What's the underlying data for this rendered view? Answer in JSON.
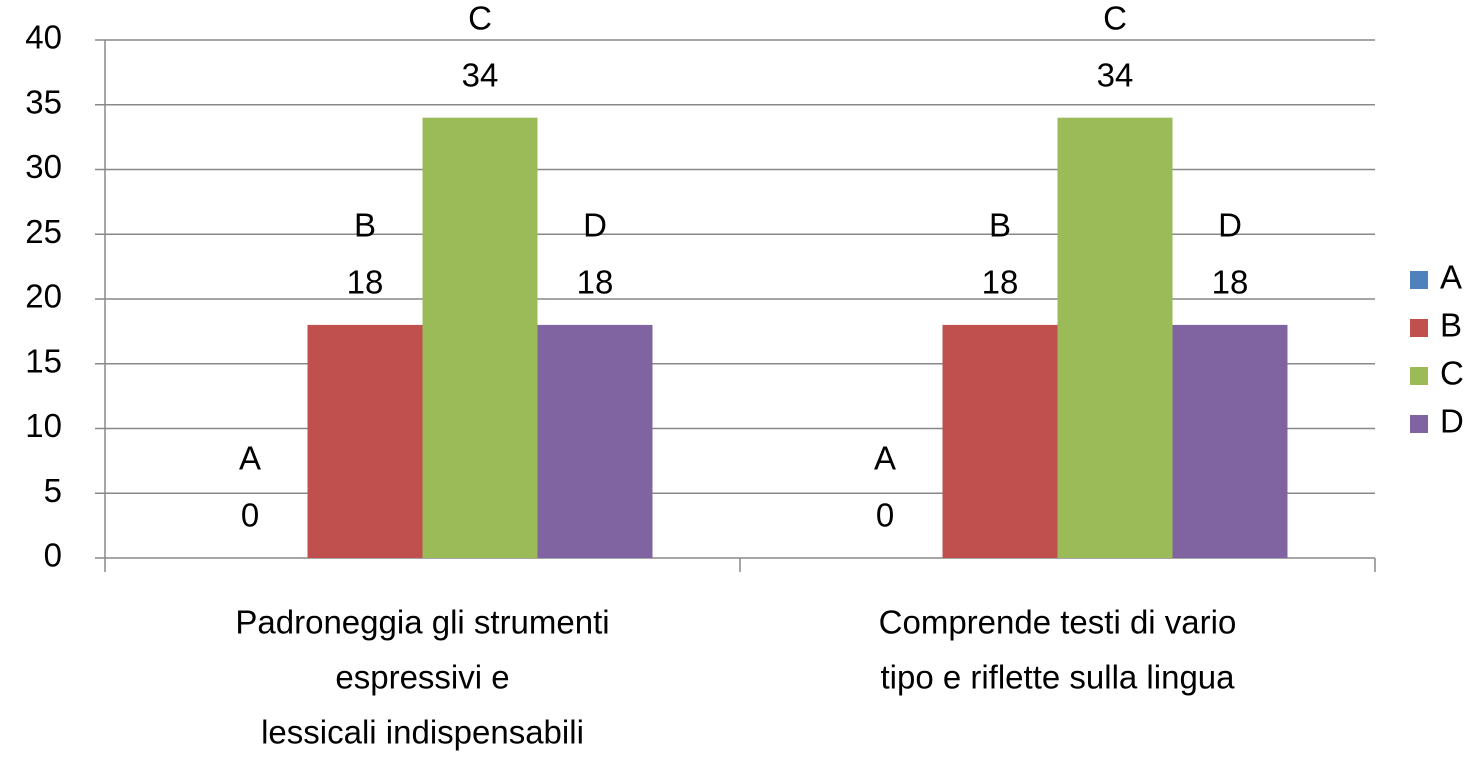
{
  "chart_data": {
    "type": "bar",
    "categories": [
      [
        "Padroneggia gli strumenti",
        "espressivi e",
        "lessicali indispensabili"
      ],
      [
        "Comprende testi di vario",
        "tipo e riflette sulla lingua"
      ]
    ],
    "series": [
      {
        "name": "A",
        "color": "#4f81bd",
        "values": [
          0,
          0
        ]
      },
      {
        "name": "B",
        "color": "#c0504d",
        "values": [
          18,
          18
        ]
      },
      {
        "name": "C",
        "color": "#9bbb59",
        "values": [
          34,
          34
        ]
      },
      {
        "name": "D",
        "color": "#8064a2",
        "values": [
          18,
          18
        ]
      }
    ],
    "ylim": [
      0,
      40
    ],
    "yticks": [
      0,
      5,
      10,
      15,
      20,
      25,
      30,
      35,
      40
    ],
    "grid": true,
    "legend": "right"
  }
}
